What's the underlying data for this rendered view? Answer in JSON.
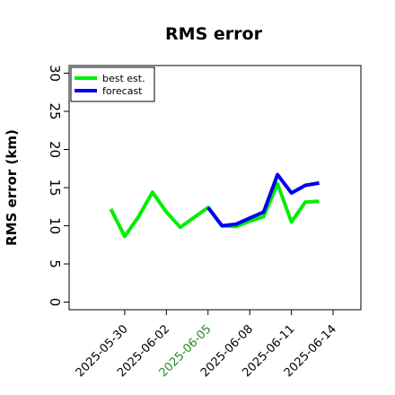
{
  "chart_data": {
    "type": "line",
    "title": "RMS error",
    "xlabel": "",
    "ylabel": "RMS error (km)",
    "ylim": [
      -1,
      31
    ],
    "yticks": [
      0,
      5,
      10,
      15,
      20,
      25,
      30
    ],
    "xticks": [
      {
        "label": "2025-05-30",
        "date": "2025-05-30",
        "color": "#000000"
      },
      {
        "label": "2025-06-02",
        "date": "2025-06-02",
        "color": "#000000"
      },
      {
        "label": "2025-06-05",
        "date": "2025-06-05",
        "color": "#228b22"
      },
      {
        "label": "2025-06-08",
        "date": "2025-06-08",
        "color": "#000000"
      },
      {
        "label": "2025-06-11",
        "date": "2025-06-11",
        "color": "#000000"
      },
      {
        "label": "2025-06-14",
        "date": "2025-06-14",
        "color": "#000000"
      }
    ],
    "xlim": [
      "2025-05-26T00:00",
      "2025-06-16T00:00"
    ],
    "legend": {
      "position": "top-left"
    },
    "grid": false,
    "series": [
      {
        "name": "best est.",
        "color": "#00ee00",
        "points": [
          {
            "x": "2025-05-29",
            "y": 12.2
          },
          {
            "x": "2025-05-30",
            "y": 8.6
          },
          {
            "x": "2025-05-31",
            "y": 11.2
          },
          {
            "x": "2025-06-01",
            "y": 14.4
          },
          {
            "x": "2025-06-02",
            "y": 11.8
          },
          {
            "x": "2025-06-03",
            "y": 9.8
          },
          {
            "x": "2025-06-04",
            "y": 11.1
          },
          {
            "x": "2025-06-05",
            "y": 12.4
          },
          {
            "x": "2025-06-06",
            "y": 10.0
          },
          {
            "x": "2025-06-07",
            "y": 9.9
          },
          {
            "x": "2025-06-08",
            "y": 10.6
          },
          {
            "x": "2025-06-09",
            "y": 11.2
          },
          {
            "x": "2025-06-10",
            "y": 15.5
          },
          {
            "x": "2025-06-11",
            "y": 10.5
          },
          {
            "x": "2025-06-12",
            "y": 13.1
          },
          {
            "x": "2025-06-13",
            "y": 13.2
          }
        ]
      },
      {
        "name": "forecast",
        "color": "#0000ee",
        "points": [
          {
            "x": "2025-06-05",
            "y": 12.4
          },
          {
            "x": "2025-06-06",
            "y": 10.0
          },
          {
            "x": "2025-06-07",
            "y": 10.2
          },
          {
            "x": "2025-06-08",
            "y": 11.0
          },
          {
            "x": "2025-06-09",
            "y": 11.8
          },
          {
            "x": "2025-06-10",
            "y": 16.7
          },
          {
            "x": "2025-06-11",
            "y": 14.3
          },
          {
            "x": "2025-06-12",
            "y": 15.3
          },
          {
            "x": "2025-06-13",
            "y": 15.6
          }
        ]
      }
    ]
  }
}
